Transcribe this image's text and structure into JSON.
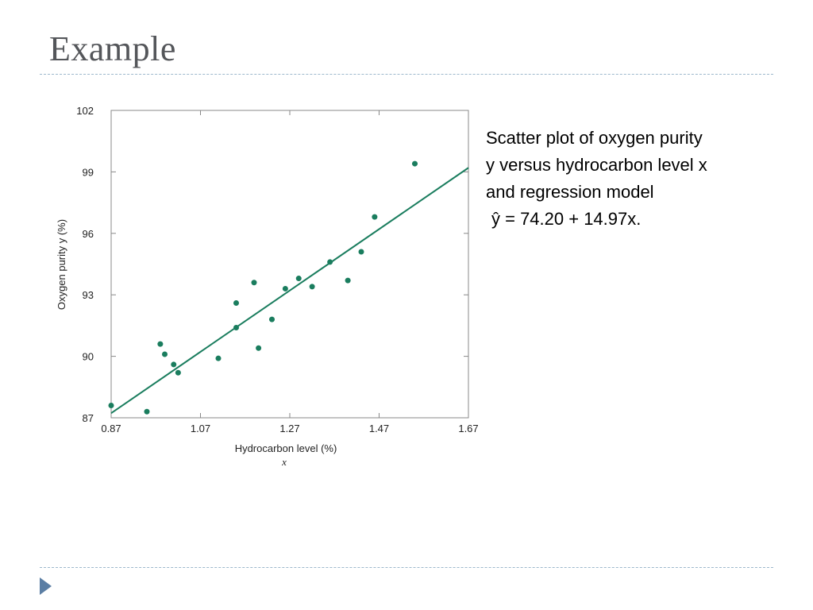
{
  "slide": {
    "title": "Example",
    "caption": {
      "line1": "Scatter plot of oxygen purity",
      "line2": "y versus hydrocarbon level x",
      "line3": "and regression model",
      "line4": "ŷ = 74.20 + 14.97x."
    }
  },
  "colors": {
    "title": "#54565a",
    "rule": "#9db8cc",
    "series": "#1a7d5e",
    "axis": "#888888",
    "nav_arrow": "#5b7ea4"
  },
  "icons": {
    "nav": "triangle-right-icon"
  },
  "chart_data": {
    "type": "scatter",
    "xlabel": "Hydrocarbon level (%)",
    "xlabel_symbol": "x",
    "ylabel": "Oxygen purity y (%)",
    "xlim": [
      0.87,
      1.67
    ],
    "ylim": [
      87,
      102
    ],
    "xticks": [
      0.87,
      1.07,
      1.27,
      1.47,
      1.67
    ],
    "xtick_labels": [
      "0.87",
      "1.07",
      "1.27",
      "1.47",
      "1.67"
    ],
    "yticks": [
      87,
      90,
      93,
      96,
      99,
      102
    ],
    "ytick_labels": [
      "87",
      "90",
      "93",
      "96",
      "99",
      "102"
    ],
    "grid": false,
    "points": [
      {
        "x": 0.87,
        "y": 87.6
      },
      {
        "x": 0.95,
        "y": 87.3
      },
      {
        "x": 0.98,
        "y": 90.6
      },
      {
        "x": 0.99,
        "y": 90.1
      },
      {
        "x": 1.01,
        "y": 89.6
      },
      {
        "x": 1.02,
        "y": 89.2
      },
      {
        "x": 1.11,
        "y": 89.9
      },
      {
        "x": 1.15,
        "y": 91.4
      },
      {
        "x": 1.15,
        "y": 92.6
      },
      {
        "x": 1.19,
        "y": 93.6
      },
      {
        "x": 1.2,
        "y": 90.4
      },
      {
        "x": 1.23,
        "y": 91.8
      },
      {
        "x": 1.26,
        "y": 93.3
      },
      {
        "x": 1.29,
        "y": 93.8
      },
      {
        "x": 1.32,
        "y": 93.4
      },
      {
        "x": 1.36,
        "y": 94.6
      },
      {
        "x": 1.4,
        "y": 93.7
      },
      {
        "x": 1.43,
        "y": 95.1
      },
      {
        "x": 1.46,
        "y": 96.8
      },
      {
        "x": 1.55,
        "y": 99.4
      }
    ],
    "regression": {
      "intercept": 74.2,
      "slope": 14.97
    }
  }
}
